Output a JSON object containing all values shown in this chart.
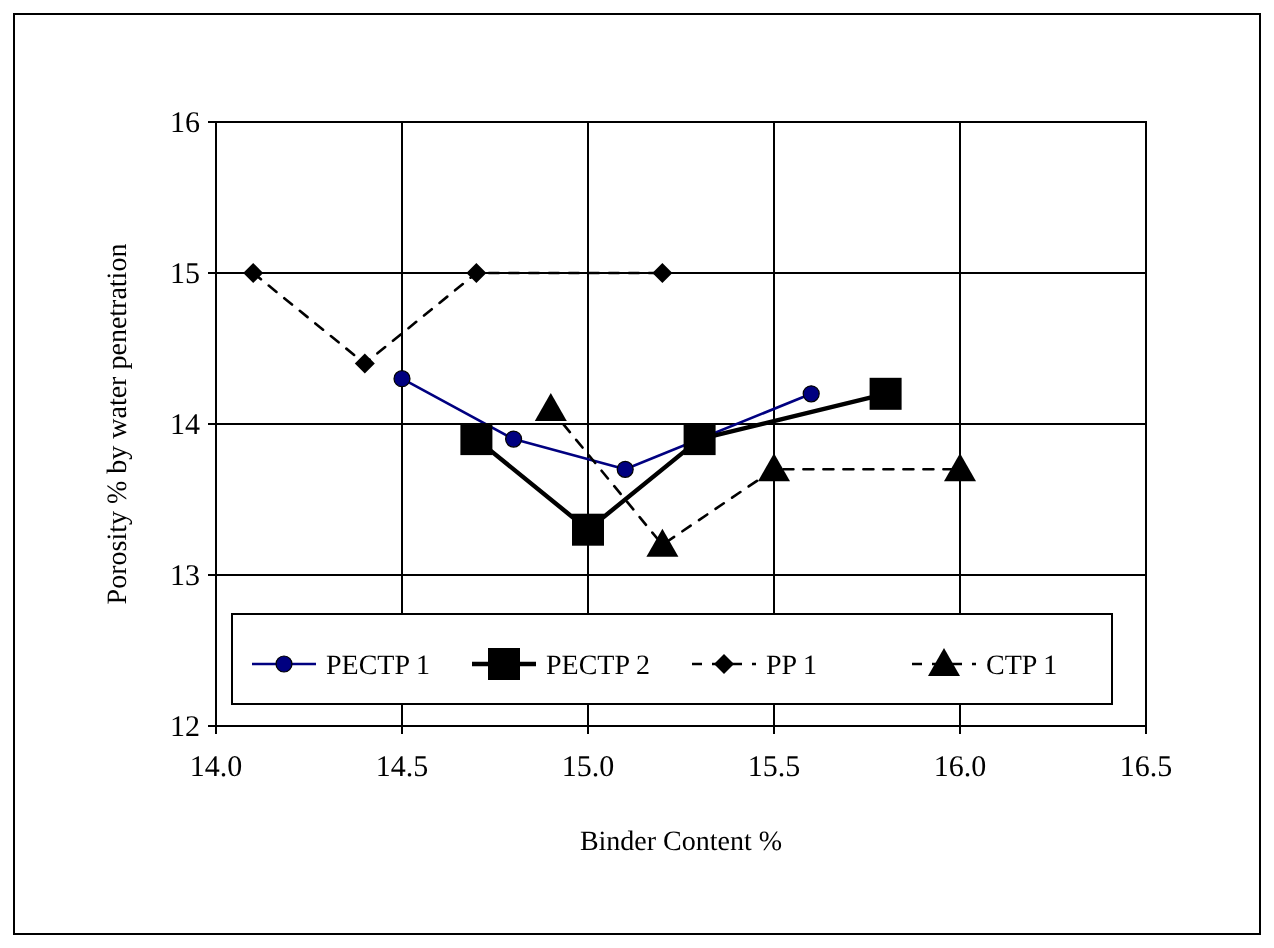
{
  "chart_data": {
    "type": "line",
    "xlabel": "Binder Content %",
    "ylabel": "Porosity % by water penetration",
    "xlim": [
      14.0,
      16.5
    ],
    "xticks": [
      {
        "value": 14.0,
        "label": "14.0"
      },
      {
        "value": 14.5,
        "label": "14.5"
      },
      {
        "value": 15.0,
        "label": "15.0"
      },
      {
        "value": 15.5,
        "label": "15.5"
      },
      {
        "value": 16.0,
        "label": "16.0"
      },
      {
        "value": 16.5,
        "label": "16.5"
      }
    ],
    "ylim": [
      12,
      16
    ],
    "yticks": [
      12,
      13,
      14,
      15,
      16
    ],
    "grid": true,
    "legend": "bottom",
    "series": [
      {
        "name": "PECTP 1",
        "color": "#000080",
        "marker": "circle",
        "line_style": "solid",
        "x": [
          14.5,
          14.8,
          15.1,
          15.6
        ],
        "values": [
          14.3,
          13.9,
          13.7,
          14.2
        ]
      },
      {
        "name": "PECTP 2",
        "color": "#000000",
        "marker": "square",
        "line_style": "solid",
        "x": [
          14.7,
          15.0,
          15.3,
          15.8
        ],
        "values": [
          13.9,
          13.3,
          13.9,
          14.2
        ]
      },
      {
        "name": "PP 1",
        "color": "#000000",
        "marker": "diamond",
        "line_style": "dashed",
        "x": [
          14.1,
          14.4,
          14.7,
          15.2
        ],
        "values": [
          15,
          14.4,
          15,
          15
        ]
      },
      {
        "name": "CTP 1",
        "color": "#000000",
        "marker": "triangle",
        "line_style": "dashed",
        "x": [
          14.9,
          15.2,
          15.5,
          16.0
        ],
        "values": [
          14.1,
          13.2,
          13.7,
          13.7
        ]
      }
    ]
  }
}
